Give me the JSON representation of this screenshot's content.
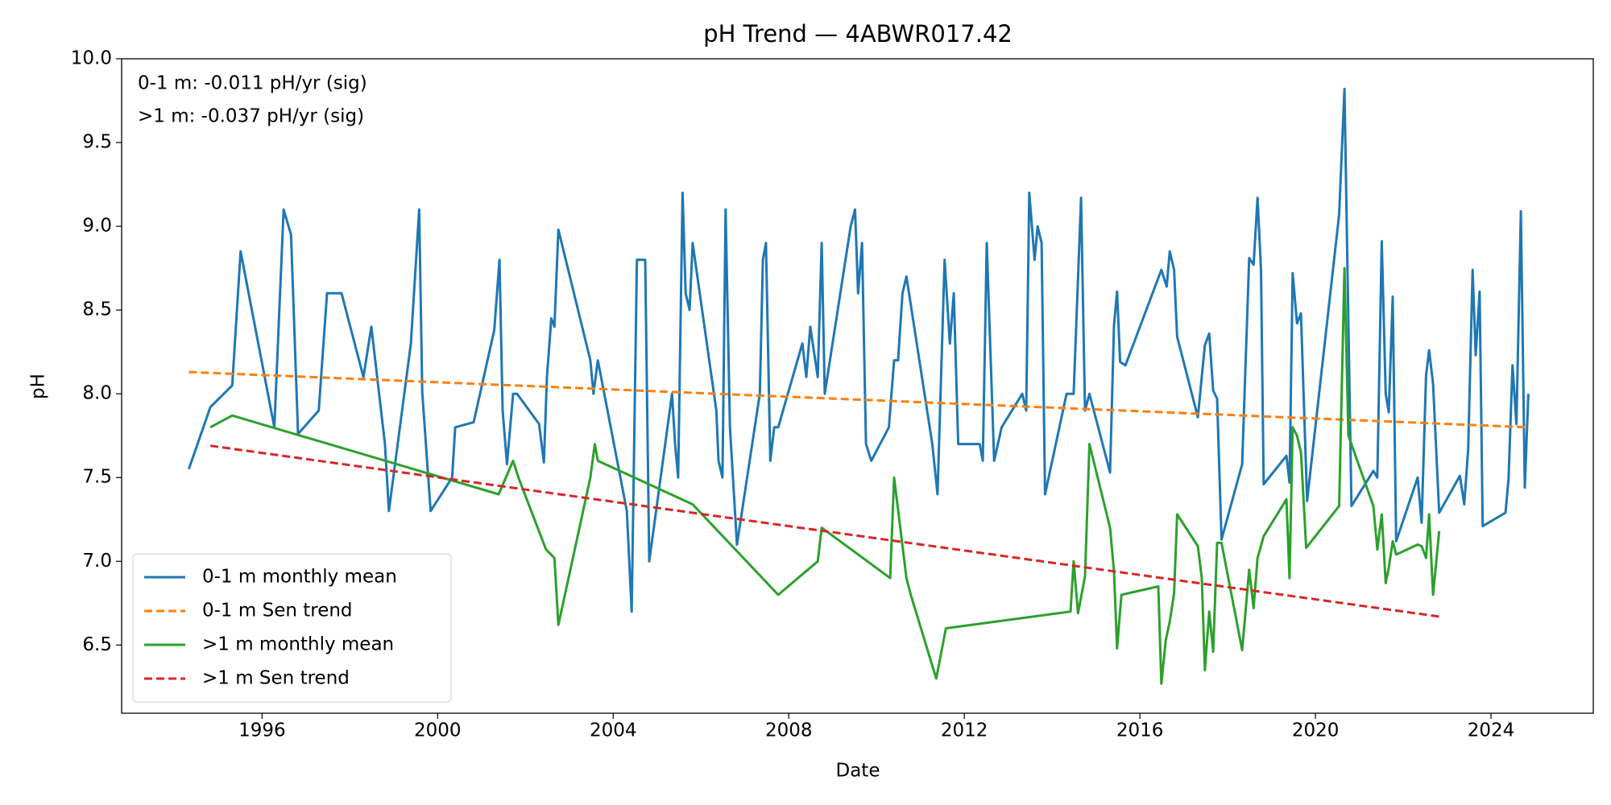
{
  "chart_data": {
    "type": "line",
    "title": "pH Trend — 4ABWR017.42",
    "x_label": "Date",
    "y_label": "pH",
    "annotations": [
      "0-1 m: -0.011 pH/yr (sig)",
      ">1 m: -0.037 pH/yr (sig)"
    ],
    "xlim": [
      1992.8,
      2026.33
    ],
    "ylim": [
      6.093,
      10
    ],
    "xticks": [
      1996,
      2000,
      2004,
      2008,
      2012,
      2016,
      2020,
      2024
    ],
    "yticks": [
      6.5,
      {
        "value": 7,
        "label": "7.0"
      },
      7.5,
      {
        "value": 8,
        "label": "8.0"
      },
      8.5,
      {
        "value": 9,
        "label": "9.0"
      },
      9.5,
      {
        "value": 10,
        "label": "10.0"
      }
    ],
    "grid": false,
    "legend": "lower left",
    "series": [
      {
        "name": "0-1 m monthly mean",
        "color": "#1f77b4",
        "linestyle": "solid",
        "x": [
          1994.33,
          1994.82,
          1995.32,
          1995.51,
          1996.28,
          1996.49,
          1996.66,
          1996.82,
          1997.29,
          1997.48,
          1997.81,
          1998.31,
          1998.49,
          1998.8,
          1998.89,
          1999.39,
          1999.58,
          1999.65,
          1999.84,
          2000.33,
          2000.4,
          2000.82,
          2001.29,
          2001.41,
          2001.48,
          2001.58,
          2001.72,
          2001.81,
          2002.31,
          2002.42,
          2002.49,
          2002.59,
          2002.66,
          2002.75,
          2003.48,
          2003.55,
          2003.65,
          2004.31,
          2004.42,
          2004.54,
          2004.73,
          2004.82,
          2005.34,
          2005.41,
          2005.48,
          2005.58,
          2005.65,
          2005.74,
          2005.81,
          2006.35,
          2006.4,
          2006.49,
          2006.56,
          2006.66,
          2006.82,
          2007.34,
          2007.41,
          2007.48,
          2007.58,
          2007.67,
          2007.76,
          2008.31,
          2008.4,
          2008.49,
          2008.66,
          2008.75,
          2008.82,
          2009.41,
          2009.51,
          2009.58,
          2009.67,
          2009.76,
          2009.88,
          2010.28,
          2010.4,
          2010.49,
          2010.59,
          2010.68,
          2011.27,
          2011.39,
          2011.55,
          2011.67,
          2011.76,
          2011.86,
          2012.35,
          2012.42,
          2012.51,
          2012.68,
          2012.85,
          2013.32,
          2013.41,
          2013.48,
          2013.6,
          2013.67,
          2013.76,
          2013.84,
          2014.33,
          2014.49,
          2014.66,
          2014.75,
          2014.85,
          2015.32,
          2015.41,
          2015.48,
          2015.55,
          2015.67,
          2016.49,
          2016.61,
          2016.68,
          2016.78,
          2016.85,
          2017.32,
          2017.48,
          2017.58,
          2017.67,
          2017.76,
          2017.86,
          2018.33,
          2018.49,
          2018.59,
          2018.68,
          2018.76,
          2018.82,
          2019.34,
          2019.41,
          2019.48,
          2019.58,
          2019.67,
          2019.81,
          2020.54,
          2020.66,
          2020.82,
          2021.32,
          2021.41,
          2021.51,
          2021.6,
          2021.67,
          2021.76,
          2021.84,
          2022.33,
          2022.42,
          2022.52,
          2022.59,
          2022.68,
          2022.82,
          2023.29,
          2023.39,
          2023.48,
          2023.58,
          2023.65,
          2023.74,
          2023.81,
          2024.33,
          2024.4,
          2024.49,
          2024.58,
          2024.68,
          2024.77,
          2024.85
        ],
        "values": [
          7.55,
          7.92,
          8.05,
          8.85,
          7.8,
          9.1,
          8.95,
          7.76,
          7.9,
          8.6,
          8.6,
          8.1,
          8.4,
          7.7,
          7.3,
          8.3,
          9.1,
          8.01,
          7.3,
          7.5,
          7.8,
          7.83,
          8.38,
          8.8,
          7.9,
          7.58,
          8.0,
          8.0,
          7.82,
          7.59,
          8.1,
          8.45,
          8.4,
          8.98,
          8.2,
          8.0,
          8.2,
          7.3,
          6.7,
          8.8,
          8.8,
          7.0,
          8.0,
          7.7,
          7.5,
          9.2,
          8.6,
          8.5,
          8.9,
          7.9,
          7.6,
          7.5,
          9.1,
          7.8,
          7.1,
          8.0,
          8.8,
          8.9,
          7.6,
          7.8,
          7.8,
          8.3,
          8.1,
          8.4,
          8.1,
          8.9,
          8.0,
          9.0,
          9.1,
          8.6,
          8.9,
          7.7,
          7.6,
          7.8,
          8.2,
          8.2,
          8.6,
          8.7,
          7.7,
          7.4,
          8.8,
          8.3,
          8.6,
          7.7,
          7.7,
          7.6,
          8.9,
          7.6,
          7.8,
          8.0,
          7.9,
          9.2,
          8.8,
          9.0,
          8.9,
          7.4,
          8.0,
          8.0,
          9.17,
          7.9,
          8.0,
          7.53,
          8.41,
          8.61,
          8.19,
          8.17,
          8.74,
          8.64,
          8.85,
          8.74,
          8.34,
          7.86,
          8.29,
          8.36,
          8.02,
          7.97,
          7.13,
          7.58,
          8.81,
          8.77,
          9.17,
          8.74,
          7.46,
          7.63,
          7.47,
          8.72,
          8.42,
          8.48,
          7.36,
          9.07,
          9.82,
          7.33,
          7.54,
          7.5,
          8.91,
          8.0,
          7.89,
          8.58,
          7.12,
          7.5,
          7.23,
          8.11,
          8.26,
          8.06,
          7.29,
          7.51,
          7.34,
          7.67,
          8.74,
          8.23,
          8.61,
          7.21,
          7.29,
          7.49,
          8.17,
          7.82,
          9.09,
          7.44,
          8.0
        ]
      },
      {
        "name": "0-1 m Sen trend",
        "color": "#ff7f0e",
        "linestyle": "dashed",
        "x": [
          1994.33,
          2024.85
        ],
        "values": [
          8.13,
          7.8
        ]
      },
      {
        "name": ">1 m monthly mean",
        "color": "#2ca02c",
        "linestyle": "solid",
        "x": [
          1994.82,
          1995.32,
          2001.39,
          2001.72,
          2001.84,
          2002.47,
          2002.66,
          2002.75,
          2003.48,
          2003.58,
          2003.65,
          2005.81,
          2007.76,
          2008.66,
          2008.75,
          2010.31,
          2010.4,
          2010.68,
          2010.78,
          2011.36,
          2011.58,
          2014.42,
          2014.49,
          2014.59,
          2014.75,
          2014.85,
          2015.32,
          2015.41,
          2015.48,
          2015.58,
          2016.42,
          2016.49,
          2016.59,
          2016.68,
          2016.78,
          2016.85,
          2017.32,
          2017.41,
          2017.48,
          2017.58,
          2017.67,
          2017.76,
          2017.86,
          2018.33,
          2018.49,
          2018.59,
          2018.68,
          2018.82,
          2019.34,
          2019.41,
          2019.48,
          2019.58,
          2019.67,
          2019.79,
          2020.54,
          2020.66,
          2020.75,
          2021.32,
          2021.41,
          2021.51,
          2021.6,
          2021.67,
          2021.76,
          2021.84,
          2022.33,
          2022.42,
          2022.52,
          2022.59,
          2022.68,
          2022.82
        ],
        "values": [
          7.8,
          7.87,
          7.4,
          7.6,
          7.5,
          7.07,
          7.02,
          6.62,
          7.5,
          7.7,
          7.6,
          7.34,
          6.8,
          7.0,
          7.2,
          6.9,
          7.5,
          6.9,
          6.8,
          6.3,
          6.6,
          6.7,
          7.0,
          6.69,
          6.91,
          7.7,
          7.2,
          6.94,
          6.48,
          6.8,
          6.85,
          6.27,
          6.53,
          6.64,
          6.81,
          7.28,
          7.09,
          6.9,
          6.35,
          6.7,
          6.46,
          7.11,
          7.11,
          6.47,
          6.95,
          6.72,
          7.02,
          7.15,
          7.37,
          6.9,
          7.8,
          7.75,
          7.65,
          7.08,
          7.33,
          8.75,
          7.75,
          7.33,
          7.07,
          7.28,
          6.87,
          6.96,
          7.12,
          7.04,
          7.1,
          7.09,
          7.02,
          7.28,
          6.8,
          7.18
        ]
      },
      {
        "name": ">1 m Sen trend",
        "color": "#d62728",
        "linestyle": "dashed",
        "x": [
          1994.82,
          2022.82
        ],
        "values": [
          7.69,
          6.67
        ]
      }
    ]
  }
}
